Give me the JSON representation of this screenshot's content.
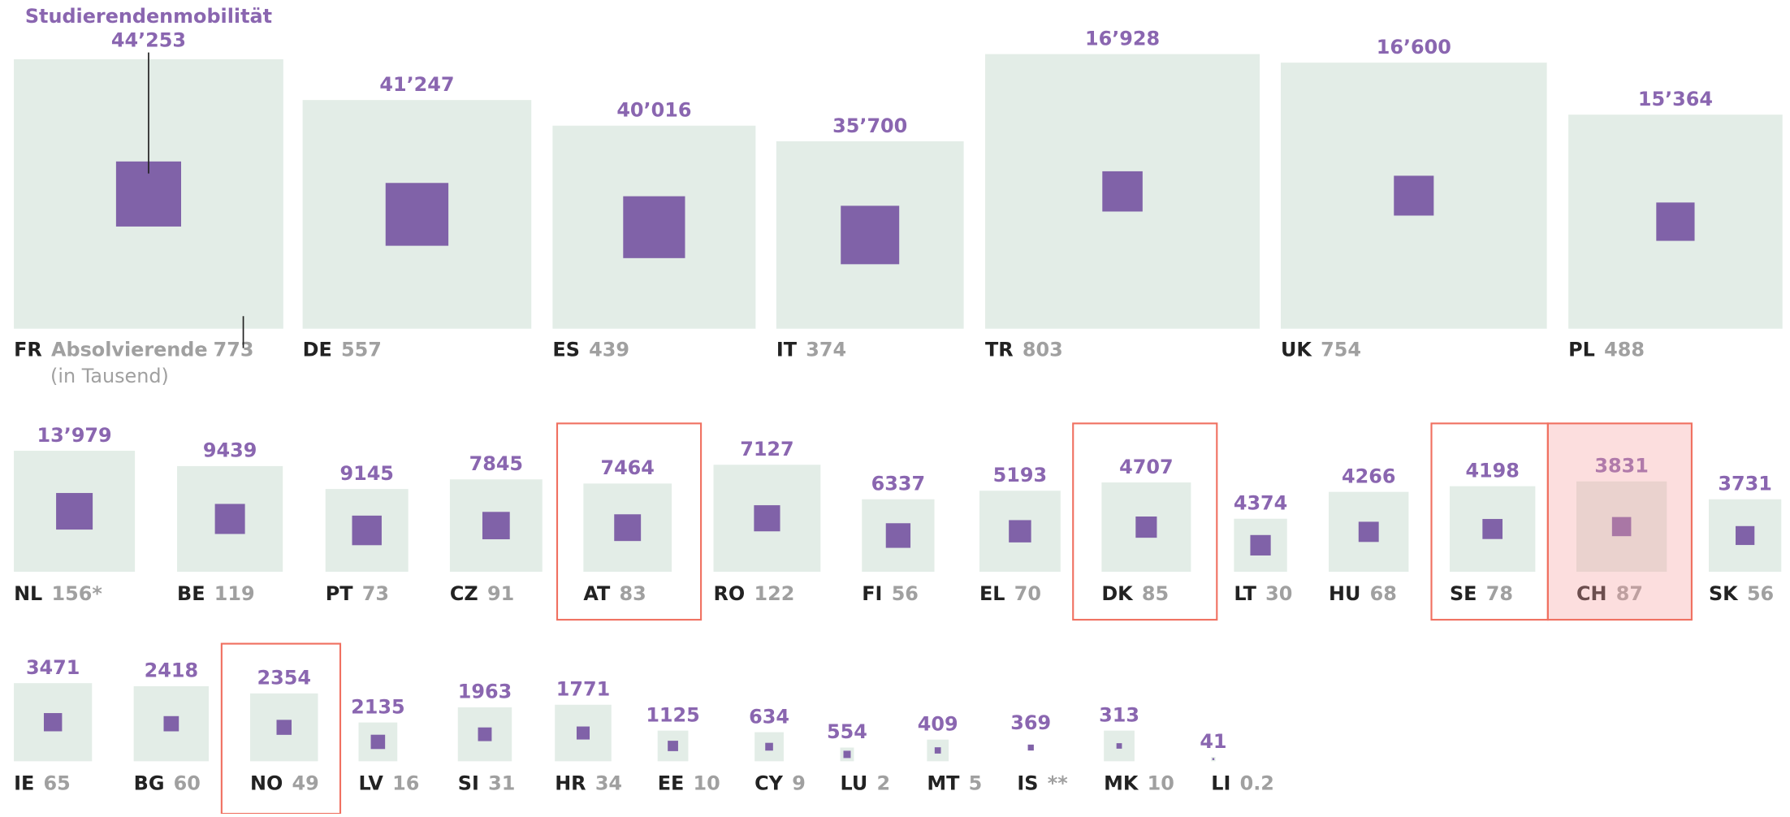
{
  "chart_data": {
    "type": "nested-squares",
    "categories": [
      "FR",
      "DE",
      "ES",
      "IT",
      "TR",
      "UK",
      "PL",
      "NL",
      "BE",
      "PT",
      "CZ",
      "AT",
      "RO",
      "FI",
      "EL",
      "DK",
      "LT",
      "HU",
      "SE",
      "CH",
      "SK",
      "IE",
      "BG",
      "NO",
      "LV",
      "SI",
      "HR",
      "EE",
      "CY",
      "LU",
      "MT",
      "IS",
      "MK",
      "LI"
    ],
    "series": [
      {
        "name": "Studierendenmobilität",
        "color": "#8062a8",
        "values": [
          44253,
          41247,
          40016,
          35700,
          16928,
          16600,
          15364,
          13979,
          9439,
          9145,
          7845,
          7464,
          7127,
          6337,
          5193,
          4707,
          4374,
          4266,
          4198,
          3831,
          3731,
          3471,
          2418,
          2354,
          2135,
          1963,
          1771,
          1125,
          634,
          554,
          409,
          369,
          313,
          41
        ],
        "value_labels": [
          "44’253",
          "41’247",
          "40’016",
          "35’700",
          "16’928",
          "16’600",
          "15’364",
          "13’979",
          "9439",
          "9145",
          "7845",
          "7464",
          "7127",
          "6337",
          "5193",
          "4707",
          "4374",
          "4266",
          "4198",
          "3831",
          "3731",
          "3471",
          "2418",
          "2354",
          "2135",
          "1963",
          "1771",
          "1125",
          "634",
          "554",
          "409",
          "369",
          "313",
          "41"
        ]
      },
      {
        "name": "Absolvierende",
        "color": "#e3ede7",
        "values": [
          773,
          557,
          439,
          374,
          803,
          754,
          488,
          156,
          119,
          73,
          91,
          83,
          122,
          56,
          70,
          85,
          30,
          68,
          78,
          87,
          56,
          65,
          60,
          49,
          16,
          31,
          34,
          10,
          9,
          2,
          5,
          null,
          10,
          0.2
        ],
        "value_labels": [
          "773",
          "557",
          "439",
          "374",
          "803",
          "754",
          "488",
          "156*",
          "119",
          "73",
          "91",
          "83",
          "122",
          "56",
          "70",
          "85",
          "30",
          "68",
          "78",
          "87",
          "56",
          "65",
          "60",
          "49",
          "16",
          "31",
          "34",
          "10",
          "9",
          "2",
          "5",
          "**",
          "10",
          "0.2"
        ]
      }
    ],
    "unit_note": "(in Tausend)",
    "highlight": [
      "AT",
      "DK",
      "SE",
      "NO"
    ],
    "highlight_color": "#f07060",
    "focus": "CH",
    "focus_color": "#f7a0a0"
  }
}
